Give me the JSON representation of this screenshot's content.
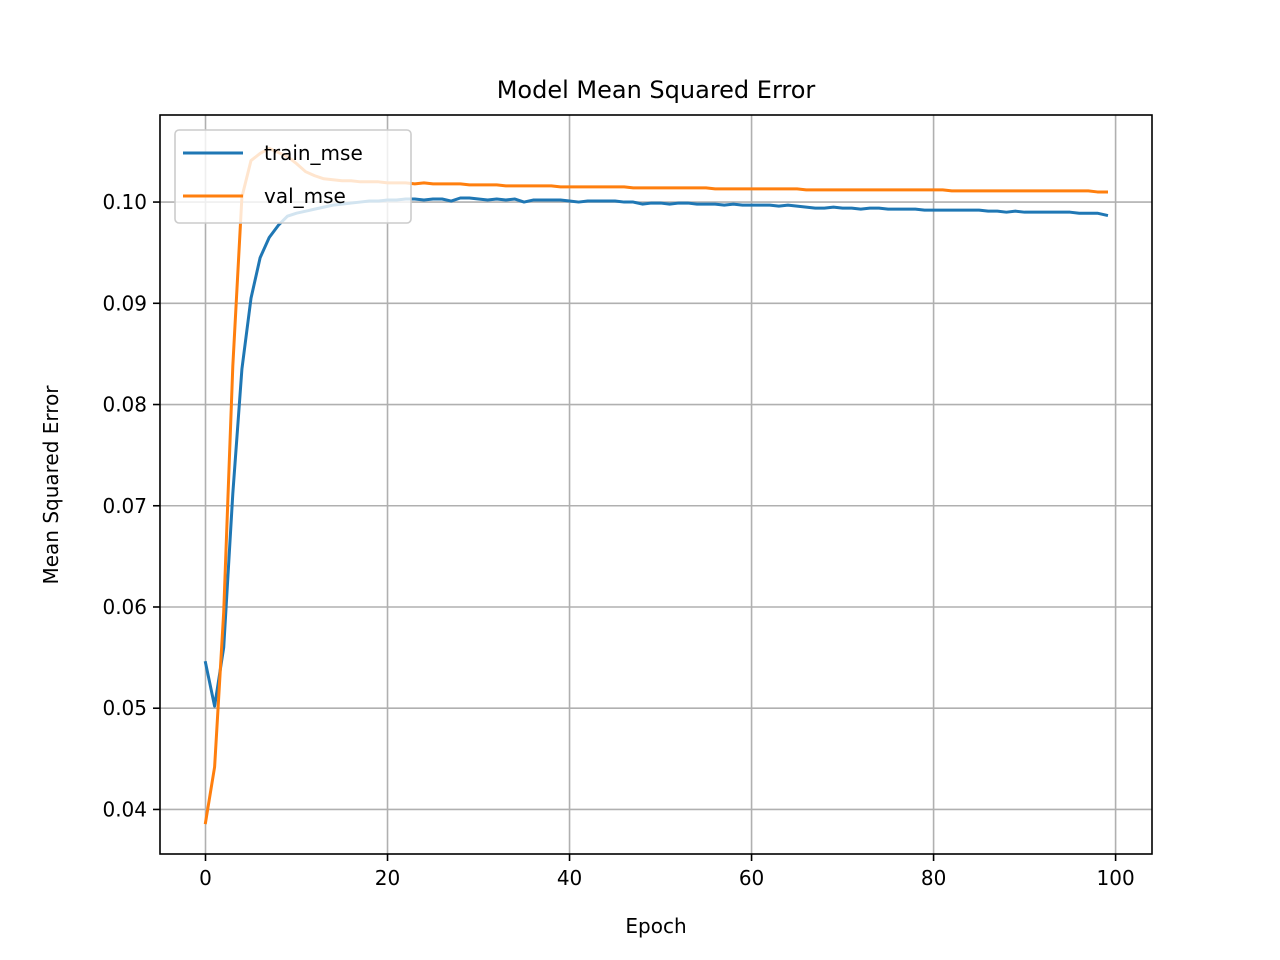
{
  "chart_data": {
    "type": "line",
    "title": "Model Mean Squared Error",
    "xlabel": "Epoch",
    "ylabel": "Mean Squared Error",
    "xlim": [
      -5,
      104
    ],
    "ylim": [
      0.0356,
      0.1086
    ],
    "xticks": [
      0,
      20,
      40,
      60,
      80,
      100
    ],
    "xtick_labels": [
      "0",
      "20",
      "40",
      "60",
      "80",
      "100"
    ],
    "yticks": [
      0.04,
      0.05,
      0.06,
      0.07,
      0.08,
      0.09,
      0.1
    ],
    "ytick_labels": [
      "0.04",
      "0.05",
      "0.06",
      "0.07",
      "0.08",
      "0.09",
      "0.10"
    ],
    "grid": true,
    "legend_position": "upper-left",
    "x": [
      0,
      1,
      2,
      3,
      4,
      5,
      6,
      7,
      8,
      9,
      10,
      11,
      12,
      13,
      14,
      15,
      16,
      17,
      18,
      19,
      20,
      21,
      22,
      23,
      24,
      25,
      26,
      27,
      28,
      29,
      30,
      31,
      32,
      33,
      34,
      35,
      36,
      37,
      38,
      39,
      40,
      41,
      42,
      43,
      44,
      45,
      46,
      47,
      48,
      49,
      50,
      51,
      52,
      53,
      54,
      55,
      56,
      57,
      58,
      59,
      60,
      61,
      62,
      63,
      64,
      65,
      66,
      67,
      68,
      69,
      70,
      71,
      72,
      73,
      74,
      75,
      76,
      77,
      78,
      79,
      80,
      81,
      82,
      83,
      84,
      85,
      86,
      87,
      88,
      89,
      90,
      91,
      92,
      93,
      94,
      95,
      96,
      97,
      98,
      99
    ],
    "series": [
      {
        "name": "train_mse",
        "color": "#1f77b4",
        "values": [
          0.0545,
          0.0502,
          0.056,
          0.0712,
          0.0835,
          0.0905,
          0.0945,
          0.0965,
          0.0977,
          0.0986,
          0.0989,
          0.0991,
          0.0993,
          0.0995,
          0.0997,
          0.0998,
          0.0999,
          0.1,
          0.1001,
          0.1001,
          0.1002,
          0.1002,
          0.1003,
          0.1003,
          0.1002,
          0.1003,
          0.1003,
          0.1001,
          0.1004,
          0.1004,
          0.1003,
          0.1002,
          0.1003,
          0.1002,
          0.1003,
          0.1,
          0.1002,
          0.1002,
          0.1002,
          0.1002,
          0.1001,
          0.1,
          0.1001,
          0.1001,
          0.1001,
          0.1001,
          0.1,
          0.1,
          0.0998,
          0.0999,
          0.0999,
          0.0998,
          0.0999,
          0.0999,
          0.0998,
          0.0998,
          0.0998,
          0.0997,
          0.0998,
          0.0997,
          0.0997,
          0.0997,
          0.0997,
          0.0996,
          0.0997,
          0.0996,
          0.0995,
          0.0994,
          0.0994,
          0.0995,
          0.0994,
          0.0994,
          0.0993,
          0.0994,
          0.0994,
          0.0993,
          0.0993,
          0.0993,
          0.0993,
          0.0992,
          0.0992,
          0.0992,
          0.0992,
          0.0992,
          0.0992,
          0.0992,
          0.0991,
          0.0991,
          0.099,
          0.0991,
          0.099,
          0.099,
          0.099,
          0.099,
          0.099,
          0.099,
          0.0989,
          0.0989,
          0.0989,
          0.0987
        ]
      },
      {
        "name": "val_mse",
        "color": "#ff7f0e",
        "values": [
          0.0387,
          0.0442,
          0.0595,
          0.0838,
          0.1005,
          0.1041,
          0.1048,
          0.1053,
          0.1049,
          0.1045,
          0.1038,
          0.103,
          0.1026,
          0.1023,
          0.1022,
          0.1021,
          0.1021,
          0.102,
          0.102,
          0.102,
          0.1019,
          0.1019,
          0.1019,
          0.1018,
          0.1019,
          0.1018,
          0.1018,
          0.1018,
          0.1018,
          0.1017,
          0.1017,
          0.1017,
          0.1017,
          0.1016,
          0.1016,
          0.1016,
          0.1016,
          0.1016,
          0.1016,
          0.1015,
          0.1015,
          0.1015,
          0.1015,
          0.1015,
          0.1015,
          0.1015,
          0.1015,
          0.1014,
          0.1014,
          0.1014,
          0.1014,
          0.1014,
          0.1014,
          0.1014,
          0.1014,
          0.1014,
          0.1013,
          0.1013,
          0.1013,
          0.1013,
          0.1013,
          0.1013,
          0.1013,
          0.1013,
          0.1013,
          0.1013,
          0.1012,
          0.1012,
          0.1012,
          0.1012,
          0.1012,
          0.1012,
          0.1012,
          0.1012,
          0.1012,
          0.1012,
          0.1012,
          0.1012,
          0.1012,
          0.1012,
          0.1012,
          0.1012,
          0.1011,
          0.1011,
          0.1011,
          0.1011,
          0.1011,
          0.1011,
          0.1011,
          0.1011,
          0.1011,
          0.1011,
          0.1011,
          0.1011,
          0.1011,
          0.1011,
          0.1011,
          0.1011,
          0.101,
          0.101
        ]
      }
    ]
  }
}
